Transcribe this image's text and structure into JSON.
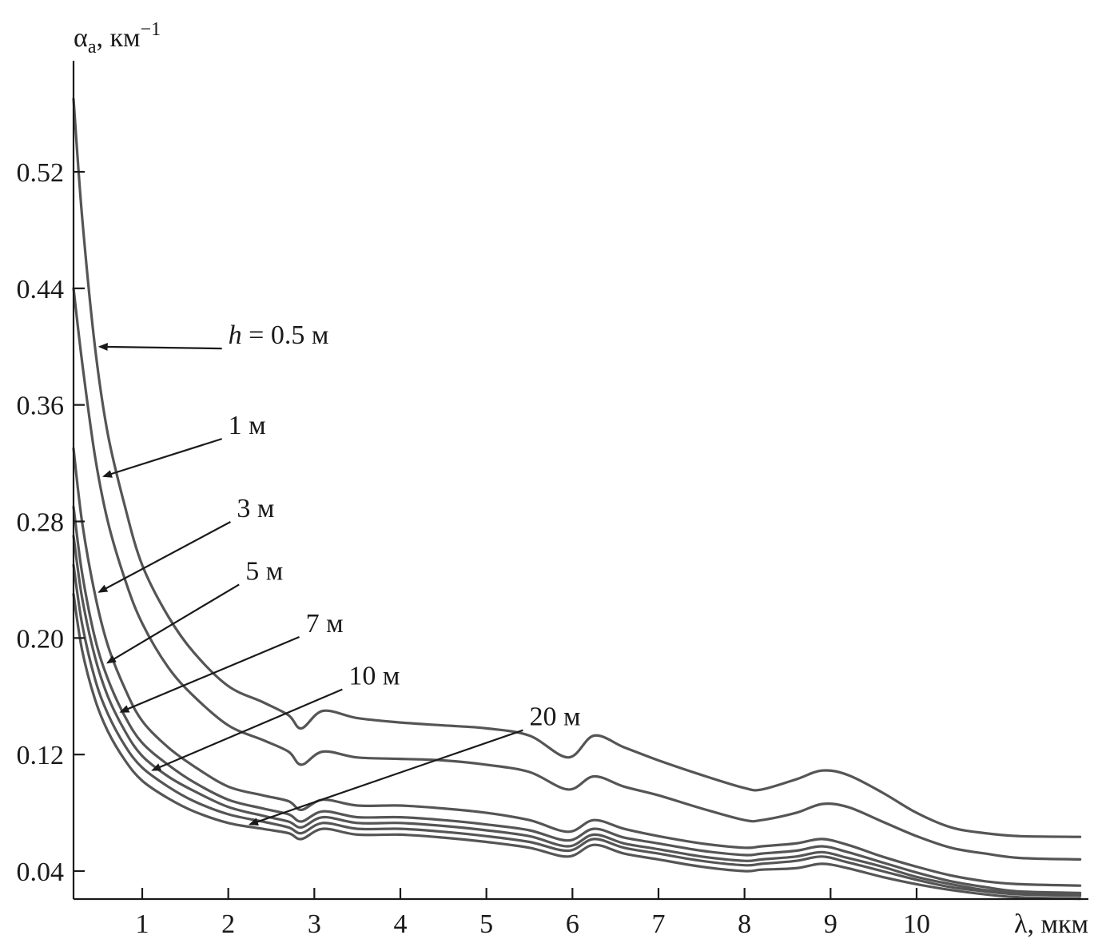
{
  "chart_data": {
    "type": "line",
    "title": "",
    "ylabel": {
      "symbol": "α",
      "sub": "a",
      "unit": ", км",
      "sup": "−1"
    },
    "xlabel": "λ, мкм",
    "xlim": [
      0.2,
      11.9
    ],
    "ylim": [
      0.02,
      0.6
    ],
    "x_ticks": [
      1,
      2,
      3,
      4,
      5,
      6,
      7,
      8,
      9,
      10
    ],
    "x_tick_labels": [
      "1",
      "2",
      "3",
      "4",
      "5",
      "6",
      "7",
      "8",
      "9",
      "10"
    ],
    "y_ticks": [
      0.04,
      0.12,
      0.2,
      0.28,
      0.36,
      0.44,
      0.52
    ],
    "y_tick_labels": [
      "0.04",
      "0.12",
      "0.20",
      "0.28",
      "0.36",
      "0.44",
      "0.52"
    ],
    "grid": false,
    "legend": "none",
    "series": [
      {
        "name": "h = 0.5 м",
        "x": [
          0.2,
          0.3,
          0.45,
          0.6,
          0.8,
          1.0,
          1.3,
          1.6,
          2.0,
          2.4,
          2.7,
          2.85,
          3.1,
          3.5,
          4.0,
          4.5,
          5.0,
          5.5,
          5.95,
          6.25,
          6.6,
          7.0,
          7.5,
          8.0,
          8.2,
          8.6,
          8.9,
          9.2,
          9.6,
          10.0,
          10.4,
          10.8,
          11.2,
          11.9
        ],
        "y": [
          0.57,
          0.49,
          0.4,
          0.34,
          0.29,
          0.25,
          0.215,
          0.19,
          0.167,
          0.156,
          0.147,
          0.138,
          0.15,
          0.145,
          0.142,
          0.14,
          0.138,
          0.133,
          0.118,
          0.133,
          0.125,
          0.116,
          0.106,
          0.097,
          0.096,
          0.103,
          0.109,
          0.106,
          0.094,
          0.08,
          0.07,
          0.066,
          0.064,
          0.0635
        ]
      },
      {
        "name": "1 м",
        "x": [
          0.2,
          0.3,
          0.45,
          0.6,
          0.8,
          1.0,
          1.3,
          1.6,
          2.0,
          2.4,
          2.7,
          2.85,
          3.1,
          3.5,
          4.0,
          4.5,
          5.0,
          5.5,
          5.95,
          6.25,
          6.6,
          7.0,
          7.5,
          8.0,
          8.2,
          8.6,
          8.9,
          9.2,
          9.6,
          10.0,
          10.4,
          10.8,
          11.2,
          11.9
        ],
        "y": [
          0.44,
          0.39,
          0.325,
          0.28,
          0.24,
          0.21,
          0.18,
          0.16,
          0.14,
          0.13,
          0.122,
          0.113,
          0.122,
          0.118,
          0.117,
          0.116,
          0.113,
          0.108,
          0.096,
          0.105,
          0.098,
          0.092,
          0.083,
          0.075,
          0.075,
          0.08,
          0.086,
          0.084,
          0.074,
          0.064,
          0.056,
          0.052,
          0.049,
          0.048
        ]
      },
      {
        "name": "3 м",
        "x": [
          0.2,
          0.3,
          0.45,
          0.6,
          0.8,
          1.0,
          1.3,
          1.6,
          2.0,
          2.4,
          2.7,
          2.85,
          3.1,
          3.5,
          4.0,
          4.5,
          5.0,
          5.5,
          5.95,
          6.25,
          6.6,
          7.0,
          7.5,
          8.0,
          8.2,
          8.6,
          8.9,
          9.2,
          9.6,
          10.0,
          10.4,
          10.8,
          11.2,
          11.9
        ],
        "y": [
          0.33,
          0.28,
          0.23,
          0.195,
          0.165,
          0.143,
          0.125,
          0.112,
          0.098,
          0.092,
          0.088,
          0.082,
          0.089,
          0.085,
          0.085,
          0.083,
          0.08,
          0.075,
          0.067,
          0.075,
          0.069,
          0.064,
          0.059,
          0.056,
          0.057,
          0.059,
          0.062,
          0.058,
          0.05,
          0.043,
          0.037,
          0.033,
          0.031,
          0.03
        ]
      },
      {
        "name": "5 м",
        "x": [
          0.2,
          0.3,
          0.45,
          0.6,
          0.8,
          1.0,
          1.3,
          1.6,
          2.0,
          2.4,
          2.7,
          2.85,
          3.1,
          3.5,
          4.0,
          4.5,
          5.0,
          5.5,
          5.95,
          6.25,
          6.6,
          7.0,
          7.5,
          8.0,
          8.2,
          8.6,
          8.9,
          9.2,
          9.6,
          10.0,
          10.4,
          10.8,
          11.2,
          11.9
        ],
        "y": [
          0.29,
          0.245,
          0.2,
          0.172,
          0.146,
          0.128,
          0.113,
          0.101,
          0.089,
          0.083,
          0.079,
          0.074,
          0.081,
          0.077,
          0.077,
          0.075,
          0.072,
          0.068,
          0.061,
          0.069,
          0.063,
          0.059,
          0.054,
          0.051,
          0.052,
          0.054,
          0.057,
          0.053,
          0.046,
          0.039,
          0.033,
          0.029,
          0.026,
          0.025
        ]
      },
      {
        "name": "7 м",
        "x": [
          0.2,
          0.3,
          0.45,
          0.6,
          0.8,
          1.0,
          1.3,
          1.6,
          2.0,
          2.4,
          2.7,
          2.85,
          3.1,
          3.5,
          4.0,
          4.5,
          5.0,
          5.5,
          5.95,
          6.25,
          6.6,
          7.0,
          7.5,
          8.0,
          8.2,
          8.6,
          8.9,
          9.2,
          9.6,
          10.0,
          10.4,
          10.8,
          11.2,
          11.9
        ],
        "y": [
          0.27,
          0.228,
          0.187,
          0.16,
          0.136,
          0.119,
          0.105,
          0.095,
          0.084,
          0.078,
          0.074,
          0.07,
          0.077,
          0.073,
          0.073,
          0.071,
          0.068,
          0.064,
          0.057,
          0.065,
          0.059,
          0.055,
          0.05,
          0.047,
          0.048,
          0.05,
          0.053,
          0.049,
          0.043,
          0.036,
          0.031,
          0.027,
          0.025,
          0.024
        ]
      },
      {
        "name": "10 м",
        "x": [
          0.2,
          0.3,
          0.45,
          0.6,
          0.8,
          1.0,
          1.3,
          1.6,
          2.0,
          2.4,
          2.7,
          2.85,
          3.1,
          3.5,
          4.0,
          4.5,
          5.0,
          5.5,
          5.95,
          6.25,
          6.6,
          7.0,
          7.5,
          8.0,
          8.2,
          8.6,
          8.9,
          9.2,
          9.6,
          10.0,
          10.4,
          10.8,
          11.2,
          11.9
        ],
        "y": [
          0.25,
          0.21,
          0.172,
          0.148,
          0.126,
          0.111,
          0.098,
          0.088,
          0.079,
          0.074,
          0.07,
          0.066,
          0.073,
          0.069,
          0.069,
          0.067,
          0.064,
          0.06,
          0.054,
          0.062,
          0.056,
          0.052,
          0.047,
          0.044,
          0.045,
          0.047,
          0.05,
          0.046,
          0.04,
          0.034,
          0.029,
          0.026,
          0.024,
          0.023
        ]
      },
      {
        "name": "20 м",
        "x": [
          0.2,
          0.3,
          0.45,
          0.6,
          0.8,
          1.0,
          1.3,
          1.6,
          2.0,
          2.4,
          2.7,
          2.85,
          3.1,
          3.5,
          4.0,
          4.5,
          5.0,
          5.5,
          5.95,
          6.25,
          6.6,
          7.0,
          7.5,
          8.0,
          8.2,
          8.6,
          8.9,
          9.2,
          9.6,
          10.0,
          10.4,
          10.8,
          11.2,
          11.9
        ],
        "y": [
          0.23,
          0.192,
          0.158,
          0.136,
          0.116,
          0.102,
          0.09,
          0.081,
          0.073,
          0.069,
          0.066,
          0.062,
          0.069,
          0.065,
          0.065,
          0.063,
          0.06,
          0.056,
          0.05,
          0.058,
          0.052,
          0.048,
          0.043,
          0.04,
          0.041,
          0.042,
          0.045,
          0.042,
          0.036,
          0.031,
          0.027,
          0.024,
          0.022,
          0.021
        ]
      }
    ],
    "annotations": [
      {
        "text_italic": "h",
        "text": " = 0.5 м",
        "series": 0,
        "x_point": 0.45,
        "x_label": 2.0,
        "y_label": 0.402
      },
      {
        "text": "1 м",
        "series": 1,
        "x_point": 0.5,
        "x_label": 2.0,
        "y_label": 0.34
      },
      {
        "text": "3 м",
        "series": 2,
        "x_point": 0.45,
        "x_label": 2.1,
        "y_label": 0.283
      },
      {
        "text": "5 м",
        "series": 3,
        "x_point": 0.55,
        "x_label": 2.2,
        "y_label": 0.24
      },
      {
        "text": "7 м",
        "series": 4,
        "x_point": 0.7,
        "x_label": 2.9,
        "y_label": 0.204
      },
      {
        "text": "10 м",
        "series": 5,
        "x_point": 1.07,
        "x_label": 3.4,
        "y_label": 0.168
      },
      {
        "text": "20 м",
        "series": 6,
        "x_point": 2.2,
        "x_label": 5.5,
        "y_label": 0.14
      }
    ]
  }
}
